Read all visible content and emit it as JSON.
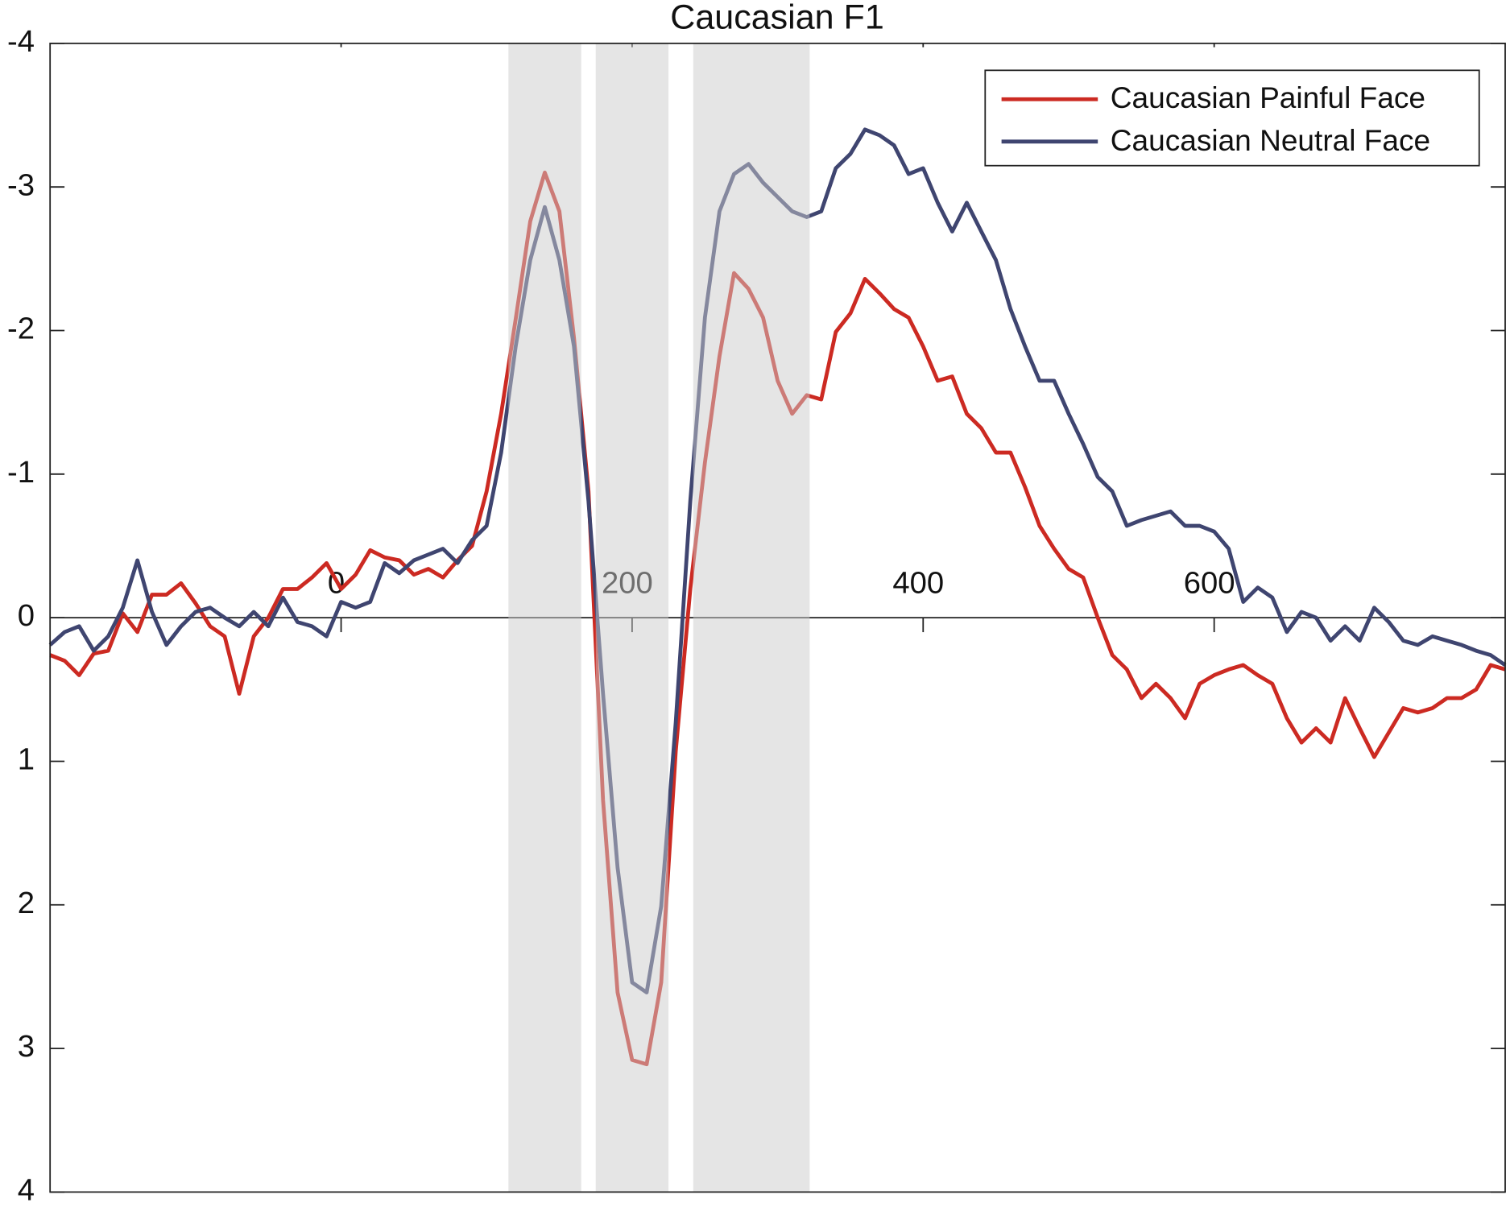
{
  "chart_data": {
    "type": "line",
    "title": "Caucasian F1",
    "x": [
      -200,
      -190,
      -180,
      -170,
      -160,
      -150,
      -140,
      -130,
      -120,
      -110,
      -100,
      -90,
      -80,
      -70,
      -60,
      -50,
      -40,
      -30,
      -20,
      -10,
      0,
      10,
      20,
      30,
      40,
      50,
      60,
      70,
      80,
      90,
      100,
      110,
      120,
      130,
      140,
      150,
      160,
      170,
      180,
      190,
      200,
      210,
      220,
      230,
      240,
      250,
      260,
      270,
      280,
      290,
      300,
      310,
      320,
      330,
      340,
      350,
      360,
      370,
      380,
      390,
      400,
      410,
      420,
      430,
      440,
      450,
      460,
      470,
      480,
      490,
      500,
      510,
      520,
      530,
      540,
      550,
      560,
      570,
      580,
      590,
      600,
      610,
      620,
      630,
      640,
      650,
      660,
      670,
      680,
      690,
      700,
      710,
      720,
      730,
      740,
      750,
      760,
      770,
      780,
      790,
      800
    ],
    "series": [
      {
        "name": "Caucasian Painful Face",
        "color": "#cc2a22",
        "values": [
          0.26,
          0.3,
          0.4,
          0.25,
          0.23,
          -0.03,
          0.1,
          -0.16,
          -0.16,
          -0.24,
          -0.1,
          0.06,
          0.13,
          0.53,
          0.13,
          0,
          -0.2,
          -0.2,
          -0.28,
          -0.38,
          -0.2,
          -0.3,
          -0.47,
          -0.42,
          -0.4,
          -0.3,
          -0.34,
          -0.28,
          -0.4,
          -0.5,
          -0.88,
          -1.42,
          -2.08,
          -2.76,
          -3.1,
          -2.83,
          -1.95,
          -0.88,
          1.27,
          2.61,
          3.08,
          3.11,
          2.54,
          0.93,
          -0.2,
          -1.08,
          -1.82,
          -2.4,
          -2.29,
          -2.09,
          -1.65,
          -1.42,
          -1.55,
          -1.52,
          -1.99,
          -2.12,
          -2.36,
          -2.26,
          -2.15,
          -2.09,
          -1.89,
          -1.65,
          -1.68,
          -1.42,
          -1.32,
          -1.15,
          -1.15,
          -0.91,
          -0.64,
          -0.48,
          -0.34,
          -0.28,
          0,
          0.26,
          0.36,
          0.56,
          0.46,
          0.56,
          0.7,
          0.46,
          0.4,
          0.36,
          0.33,
          0.4,
          0.46,
          0.7,
          0.87,
          0.77,
          0.87,
          0.56,
          0.77,
          0.97,
          0.8,
          0.63,
          0.66,
          0.63,
          0.56,
          0.56,
          0.5,
          0.33,
          0.36
        ]
      },
      {
        "name": "Caucasian Neutral Face",
        "color": "#3f4570",
        "values": [
          0.19,
          0.1,
          0.06,
          0.23,
          0.13,
          -0.07,
          -0.4,
          -0.04,
          0.19,
          0.06,
          -0.04,
          -0.07,
          0,
          0.06,
          -0.04,
          0.06,
          -0.14,
          0.03,
          0.06,
          0.13,
          -0.11,
          -0.07,
          -0.11,
          -0.38,
          -0.31,
          -0.4,
          -0.44,
          -0.48,
          -0.38,
          -0.54,
          -0.64,
          -1.15,
          -1.89,
          -2.49,
          -2.86,
          -2.49,
          -1.89,
          -0.81,
          0.53,
          1.74,
          2.54,
          2.61,
          2.01,
          0.73,
          -0.81,
          -2.09,
          -2.83,
          -3.09,
          -3.16,
          -3.03,
          -2.93,
          -2.83,
          -2.79,
          -2.83,
          -3.13,
          -3.23,
          -3.4,
          -3.36,
          -3.29,
          -3.09,
          -3.13,
          -2.89,
          -2.69,
          -2.89,
          -2.69,
          -2.49,
          -2.15,
          -1.89,
          -1.65,
          -1.65,
          -1.42,
          -1.21,
          -0.98,
          -0.88,
          -0.64,
          -0.68,
          -0.71,
          -0.74,
          -0.64,
          -0.64,
          -0.6,
          -0.48,
          -0.11,
          -0.21,
          -0.14,
          0.1,
          -0.04,
          0,
          0.16,
          0.06,
          0.16,
          -0.07,
          0.03,
          0.16,
          0.19,
          0.13,
          0.16,
          0.19,
          0.23,
          0.26,
          0.33
        ]
      }
    ],
    "shaded_regions": [
      [
        115,
        165
      ],
      [
        175,
        225
      ],
      [
        242,
        322
      ]
    ],
    "shade_color": "#cccccc",
    "xlim": [
      -200,
      800
    ],
    "xticks": [
      0,
      200,
      400,
      600
    ],
    "ylim": [
      -4,
      4
    ],
    "yticks": [
      -4,
      -3,
      -2,
      -1,
      0,
      1,
      2,
      3,
      4
    ],
    "y_reversed": true,
    "legend": "upper right"
  }
}
